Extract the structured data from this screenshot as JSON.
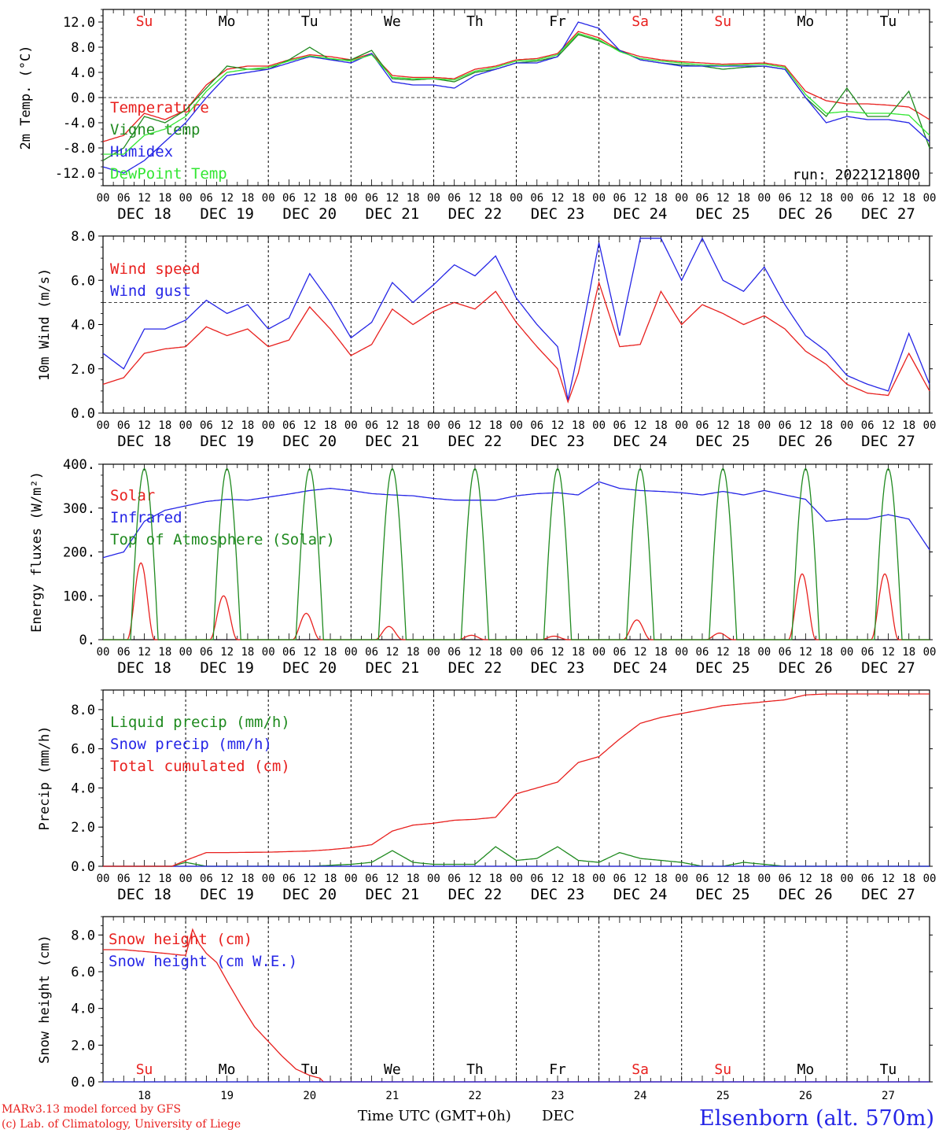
{
  "colors": {
    "red": "#e8201e",
    "green": "#1f8a1f",
    "blue": "#2525e6",
    "lightgreen": "#33e633",
    "axis": "#000000"
  },
  "x_axis": {
    "hour_ticks": [
      "00",
      "06",
      "12",
      "18"
    ],
    "days": [
      "DEC 18",
      "DEC 19",
      "DEC 20",
      "DEC 21",
      "DEC 22",
      "DEC 23",
      "DEC 24",
      "DEC 25",
      "DEC 26",
      "DEC 27"
    ],
    "weekdays": [
      "Su",
      "Mo",
      "Tu",
      "We",
      "Th",
      "Fr",
      "Sa",
      "Su",
      "Mo",
      "Tu"
    ],
    "weekday_colors": [
      "red",
      "black",
      "black",
      "black",
      "black",
      "black",
      "red",
      "red",
      "black",
      "black"
    ],
    "day_numbers": [
      "18",
      "19",
      "20",
      "21",
      "22",
      "23",
      "24",
      "25",
      "26",
      "27"
    ],
    "time_label": "Time UTC (GMT+0h)",
    "month_label": "DEC"
  },
  "footer": {
    "line1": "MARv3.13 model forced by GFS",
    "line2": "(c) Lab. of Climatology, University of Liege",
    "station": "Elsenborn (alt. 570m)"
  },
  "chart_data": [
    {
      "type": "line",
      "ylabel": "2m Temp. (°C)",
      "ylim": [
        -14,
        14
      ],
      "yticks": [
        "-12.0",
        "-8.0",
        "-4.0",
        "0.0",
        "4.0",
        "8.0",
        "12.0"
      ],
      "run_label": "run: 2022121800",
      "x_units": "hours since DEC 18 00 UTC",
      "series": [
        {
          "name": "Temperature",
          "color": "red",
          "x": [
            0,
            6,
            12,
            18,
            24,
            30,
            36,
            42,
            48,
            54,
            60,
            66,
            72,
            78,
            84,
            90,
            96,
            102,
            108,
            114,
            120,
            126,
            132,
            138,
            144,
            150,
            156,
            162,
            168,
            174,
            180,
            186,
            192,
            198,
            204,
            210,
            216,
            222,
            228,
            234,
            240
          ],
          "y": [
            -7,
            -6,
            -2.5,
            -3.5,
            -2,
            2,
            4.5,
            5,
            5,
            6,
            6.8,
            6.5,
            6,
            7,
            3.5,
            3.2,
            3.2,
            3,
            4.5,
            5,
            6,
            6.2,
            7,
            10.5,
            9.5,
            7.5,
            6.5,
            6,
            5.7,
            5.5,
            5.3,
            5.4,
            5.5,
            5,
            1,
            -0.5,
            -1,
            -1,
            -1.2,
            -1.5,
            -3.5
          ]
        },
        {
          "name": "Vigne temp",
          "color": "green",
          "x": [
            0,
            6,
            12,
            18,
            24,
            30,
            36,
            42,
            48,
            54,
            60,
            66,
            72,
            78,
            84,
            90,
            96,
            102,
            108,
            114,
            120,
            126,
            132,
            138,
            144,
            150,
            156,
            162,
            168,
            174,
            180,
            186,
            192,
            198,
            204,
            210,
            216,
            222,
            228,
            234,
            240
          ],
          "y": [
            -10,
            -8,
            -3,
            -4,
            -2,
            1.5,
            5,
            4.5,
            4.5,
            6,
            8,
            6,
            6,
            7.5,
            3,
            2.8,
            3,
            2.5,
            4,
            4.5,
            5.5,
            5.8,
            6.5,
            10,
            9,
            7.5,
            6,
            5.5,
            5.2,
            5.0,
            4.5,
            4.8,
            5,
            4.5,
            0,
            -3,
            1.5,
            -3,
            -3,
            1,
            -8
          ]
        },
        {
          "name": "Humidex",
          "color": "blue",
          "x": [
            0,
            6,
            12,
            18,
            24,
            30,
            36,
            42,
            48,
            54,
            60,
            66,
            72,
            78,
            84,
            90,
            96,
            102,
            108,
            114,
            120,
            126,
            132,
            138,
            144,
            150,
            156,
            162,
            168,
            174,
            180,
            186,
            192,
            198,
            204,
            210,
            216,
            222,
            228,
            234,
            240
          ],
          "y": [
            -11,
            -12,
            -10,
            -7,
            -4,
            0,
            3.5,
            4,
            4.5,
            5.5,
            6.5,
            6,
            5.5,
            7,
            2.5,
            2,
            2,
            1.5,
            3.5,
            4.5,
            5.5,
            5.5,
            6.5,
            12,
            11,
            7.5,
            6,
            5.5,
            5,
            5,
            5,
            5,
            5,
            4.5,
            0,
            -4,
            -3,
            -3.5,
            -3.5,
            -4,
            -7
          ]
        },
        {
          "name": "DewPoint Temp",
          "color": "lightgreen",
          "x": [
            0,
            6,
            12,
            18,
            24,
            30,
            36,
            42,
            48,
            54,
            60,
            66,
            72,
            78,
            84,
            90,
            96,
            102,
            108,
            114,
            120,
            126,
            132,
            138,
            144,
            150,
            156,
            162,
            168,
            174,
            180,
            186,
            192,
            198,
            204,
            210,
            216,
            222,
            228,
            234,
            240
          ],
          "y": [
            -9,
            -9,
            -6,
            -5,
            -3,
            1,
            4,
            4.5,
            4.8,
            5.8,
            6.6,
            6.2,
            5.8,
            6.8,
            3.2,
            3,
            3,
            2.8,
            4.2,
            4.8,
            5.8,
            6,
            6.8,
            10.2,
            9.2,
            7.3,
            6.2,
            5.8,
            5.5,
            5.2,
            5.1,
            5.2,
            5.3,
            4.8,
            0.5,
            -2.5,
            -2.2,
            -2.5,
            -2.5,
            -2.8,
            -6
          ]
        }
      ]
    },
    {
      "type": "line",
      "ylabel": "10m Wind (m/s)",
      "ylim": [
        0,
        8
      ],
      "yticks": [
        "0.0",
        "2.0",
        "4.0",
        "6.0",
        "8.0"
      ],
      "ref_line": 5,
      "x_units": "hours since DEC 18 00 UTC",
      "series": [
        {
          "name": "Wind speed",
          "color": "red",
          "x": [
            0,
            6,
            12,
            18,
            24,
            30,
            36,
            42,
            48,
            54,
            60,
            66,
            72,
            78,
            84,
            90,
            96,
            102,
            108,
            114,
            120,
            126,
            132,
            135,
            138,
            144,
            150,
            156,
            162,
            168,
            174,
            180,
            186,
            192,
            198,
            204,
            210,
            216,
            222,
            228,
            234,
            240
          ],
          "y": [
            1.3,
            1.6,
            2.7,
            2.9,
            3.0,
            3.9,
            3.5,
            3.8,
            3.0,
            3.3,
            4.8,
            3.8,
            2.6,
            3.1,
            4.7,
            4.0,
            4.6,
            5.0,
            4.7,
            5.5,
            4.1,
            3.0,
            2.0,
            0.5,
            1.8,
            5.9,
            3.0,
            3.1,
            5.5,
            4.0,
            4.9,
            4.5,
            4.0,
            4.4,
            3.8,
            2.8,
            2.2,
            1.3,
            0.9,
            0.8,
            2.7,
            1.0
          ]
        },
        {
          "name": "Wind gust",
          "color": "blue",
          "x": [
            0,
            6,
            12,
            18,
            24,
            30,
            36,
            42,
            48,
            54,
            60,
            66,
            72,
            78,
            84,
            90,
            96,
            102,
            108,
            114,
            120,
            126,
            132,
            135,
            138,
            144,
            150,
            156,
            162,
            168,
            174,
            180,
            186,
            192,
            198,
            204,
            210,
            216,
            222,
            228,
            234,
            240
          ],
          "y": [
            2.7,
            2.0,
            3.8,
            3.8,
            4.2,
            5.1,
            4.5,
            4.9,
            3.8,
            4.3,
            6.3,
            5.0,
            3.4,
            4.1,
            5.9,
            5.0,
            5.8,
            6.7,
            6.2,
            7.1,
            5.2,
            4.0,
            3.0,
            0.6,
            2.8,
            7.7,
            3.5,
            7.9,
            7.9,
            6.0,
            7.9,
            6.0,
            5.5,
            6.6,
            4.9,
            3.5,
            2.8,
            1.7,
            1.3,
            1.0,
            3.6,
            1.3
          ]
        }
      ]
    },
    {
      "type": "line",
      "ylabel": "Energy fluxes (W/m²)",
      "ylim": [
        0,
        400
      ],
      "yticks": [
        "0.",
        "100.",
        "200.",
        "300.",
        "400."
      ],
      "x_units": "hours since DEC 18 00 UTC",
      "series": [
        {
          "name": "Solar",
          "color": "red",
          "peak_hour": 11,
          "daily_peaks": [
            175,
            100,
            60,
            30,
            10,
            8,
            45,
            15,
            150,
            150
          ]
        },
        {
          "name": "Infrared",
          "color": "blue",
          "x": [
            0,
            6,
            12,
            18,
            24,
            30,
            36,
            42,
            48,
            54,
            60,
            66,
            72,
            78,
            84,
            90,
            96,
            102,
            108,
            114,
            120,
            126,
            132,
            138,
            144,
            150,
            156,
            162,
            168,
            174,
            180,
            186,
            192,
            198,
            204,
            210,
            216,
            222,
            228,
            234,
            240
          ],
          "y": [
            187,
            200,
            270,
            295,
            305,
            315,
            320,
            318,
            325,
            332,
            340,
            345,
            340,
            333,
            330,
            328,
            322,
            318,
            318,
            318,
            328,
            333,
            335,
            330,
            360,
            345,
            340,
            338,
            335,
            330,
            338,
            330,
            340,
            330,
            320,
            270,
            275,
            275,
            285,
            275,
            205
          ]
        },
        {
          "name": "Top of Atmosphere (Solar)",
          "color": "green",
          "peak": 390,
          "half_width_hours": 4
        }
      ]
    },
    {
      "type": "line",
      "ylabel": "Precip (mm/h)",
      "ylim": [
        0,
        9
      ],
      "yticks": [
        "0.0",
        "2.0",
        "4.0",
        "6.0",
        "8.0"
      ],
      "x_units": "hours since DEC 18 00 UTC",
      "series": [
        {
          "name": "Liquid precip (mm/h)",
          "color": "green",
          "x": [
            0,
            20,
            24,
            30,
            36,
            48,
            60,
            72,
            78,
            84,
            90,
            96,
            102,
            108,
            114,
            120,
            126,
            132,
            138,
            144,
            150,
            156,
            162,
            168,
            174,
            180,
            186,
            192,
            198,
            204,
            210,
            216,
            222,
            228,
            234,
            240
          ],
          "y": [
            0,
            0,
            0.2,
            0,
            0,
            0,
            0,
            0.1,
            0.2,
            0.8,
            0.2,
            0.1,
            0.1,
            0.1,
            1.0,
            0.3,
            0.4,
            1.0,
            0.3,
            0.2,
            0.7,
            0.4,
            0.3,
            0.2,
            0,
            0,
            0.2,
            0.1,
            0,
            0,
            0,
            0,
            0,
            0,
            0,
            0
          ]
        },
        {
          "name": "Snow precip (mm/h)",
          "color": "blue",
          "x": [
            0,
            240
          ],
          "y": [
            0,
            0
          ]
        },
        {
          "name": "Total cumulated (cm)",
          "color": "red",
          "x": [
            0,
            20,
            24,
            30,
            36,
            48,
            60,
            66,
            72,
            78,
            84,
            90,
            96,
            102,
            108,
            114,
            120,
            126,
            132,
            138,
            144,
            150,
            156,
            162,
            168,
            174,
            180,
            186,
            192,
            198,
            204,
            210,
            216,
            222,
            228,
            234,
            240
          ],
          "y": [
            0,
            0,
            0.3,
            0.7,
            0.7,
            0.72,
            0.78,
            0.85,
            0.95,
            1.1,
            1.8,
            2.1,
            2.2,
            2.35,
            2.4,
            2.5,
            3.7,
            4.0,
            4.3,
            5.3,
            5.6,
            6.5,
            7.3,
            7.6,
            7.8,
            8.0,
            8.2,
            8.3,
            8.4,
            8.5,
            8.75,
            8.8,
            8.8,
            8.8,
            8.8,
            8.8,
            8.8
          ]
        }
      ]
    },
    {
      "type": "line",
      "ylabel": "Snow height (cm)",
      "ylim": [
        0,
        9
      ],
      "yticks": [
        "0.0",
        "2.0",
        "4.0",
        "6.0",
        "8.0"
      ],
      "x_units": "hours since DEC 18 00 UTC",
      "series": [
        {
          "name": "Snow height (cm)",
          "color": "red",
          "x": [
            0,
            6,
            12,
            18,
            23,
            24,
            26,
            28,
            30,
            33,
            36,
            40,
            44,
            48,
            52,
            56,
            60,
            63,
            64,
            65,
            66,
            67,
            68,
            69,
            70,
            71,
            72,
            240
          ],
          "y": [
            7.2,
            7.2,
            7.1,
            7.0,
            6.9,
            6.9,
            8.3,
            7.5,
            7.0,
            6.5,
            5.5,
            4.2,
            3.0,
            2.2,
            1.4,
            0.7,
            0.35,
            0.2,
            0,
            0,
            0,
            0,
            0,
            0,
            0,
            0,
            0,
            0
          ]
        },
        {
          "name": "Snow height (cm W.E.)",
          "color": "blue",
          "x": [
            0,
            240
          ],
          "y": [
            0,
            0
          ]
        }
      ]
    }
  ]
}
